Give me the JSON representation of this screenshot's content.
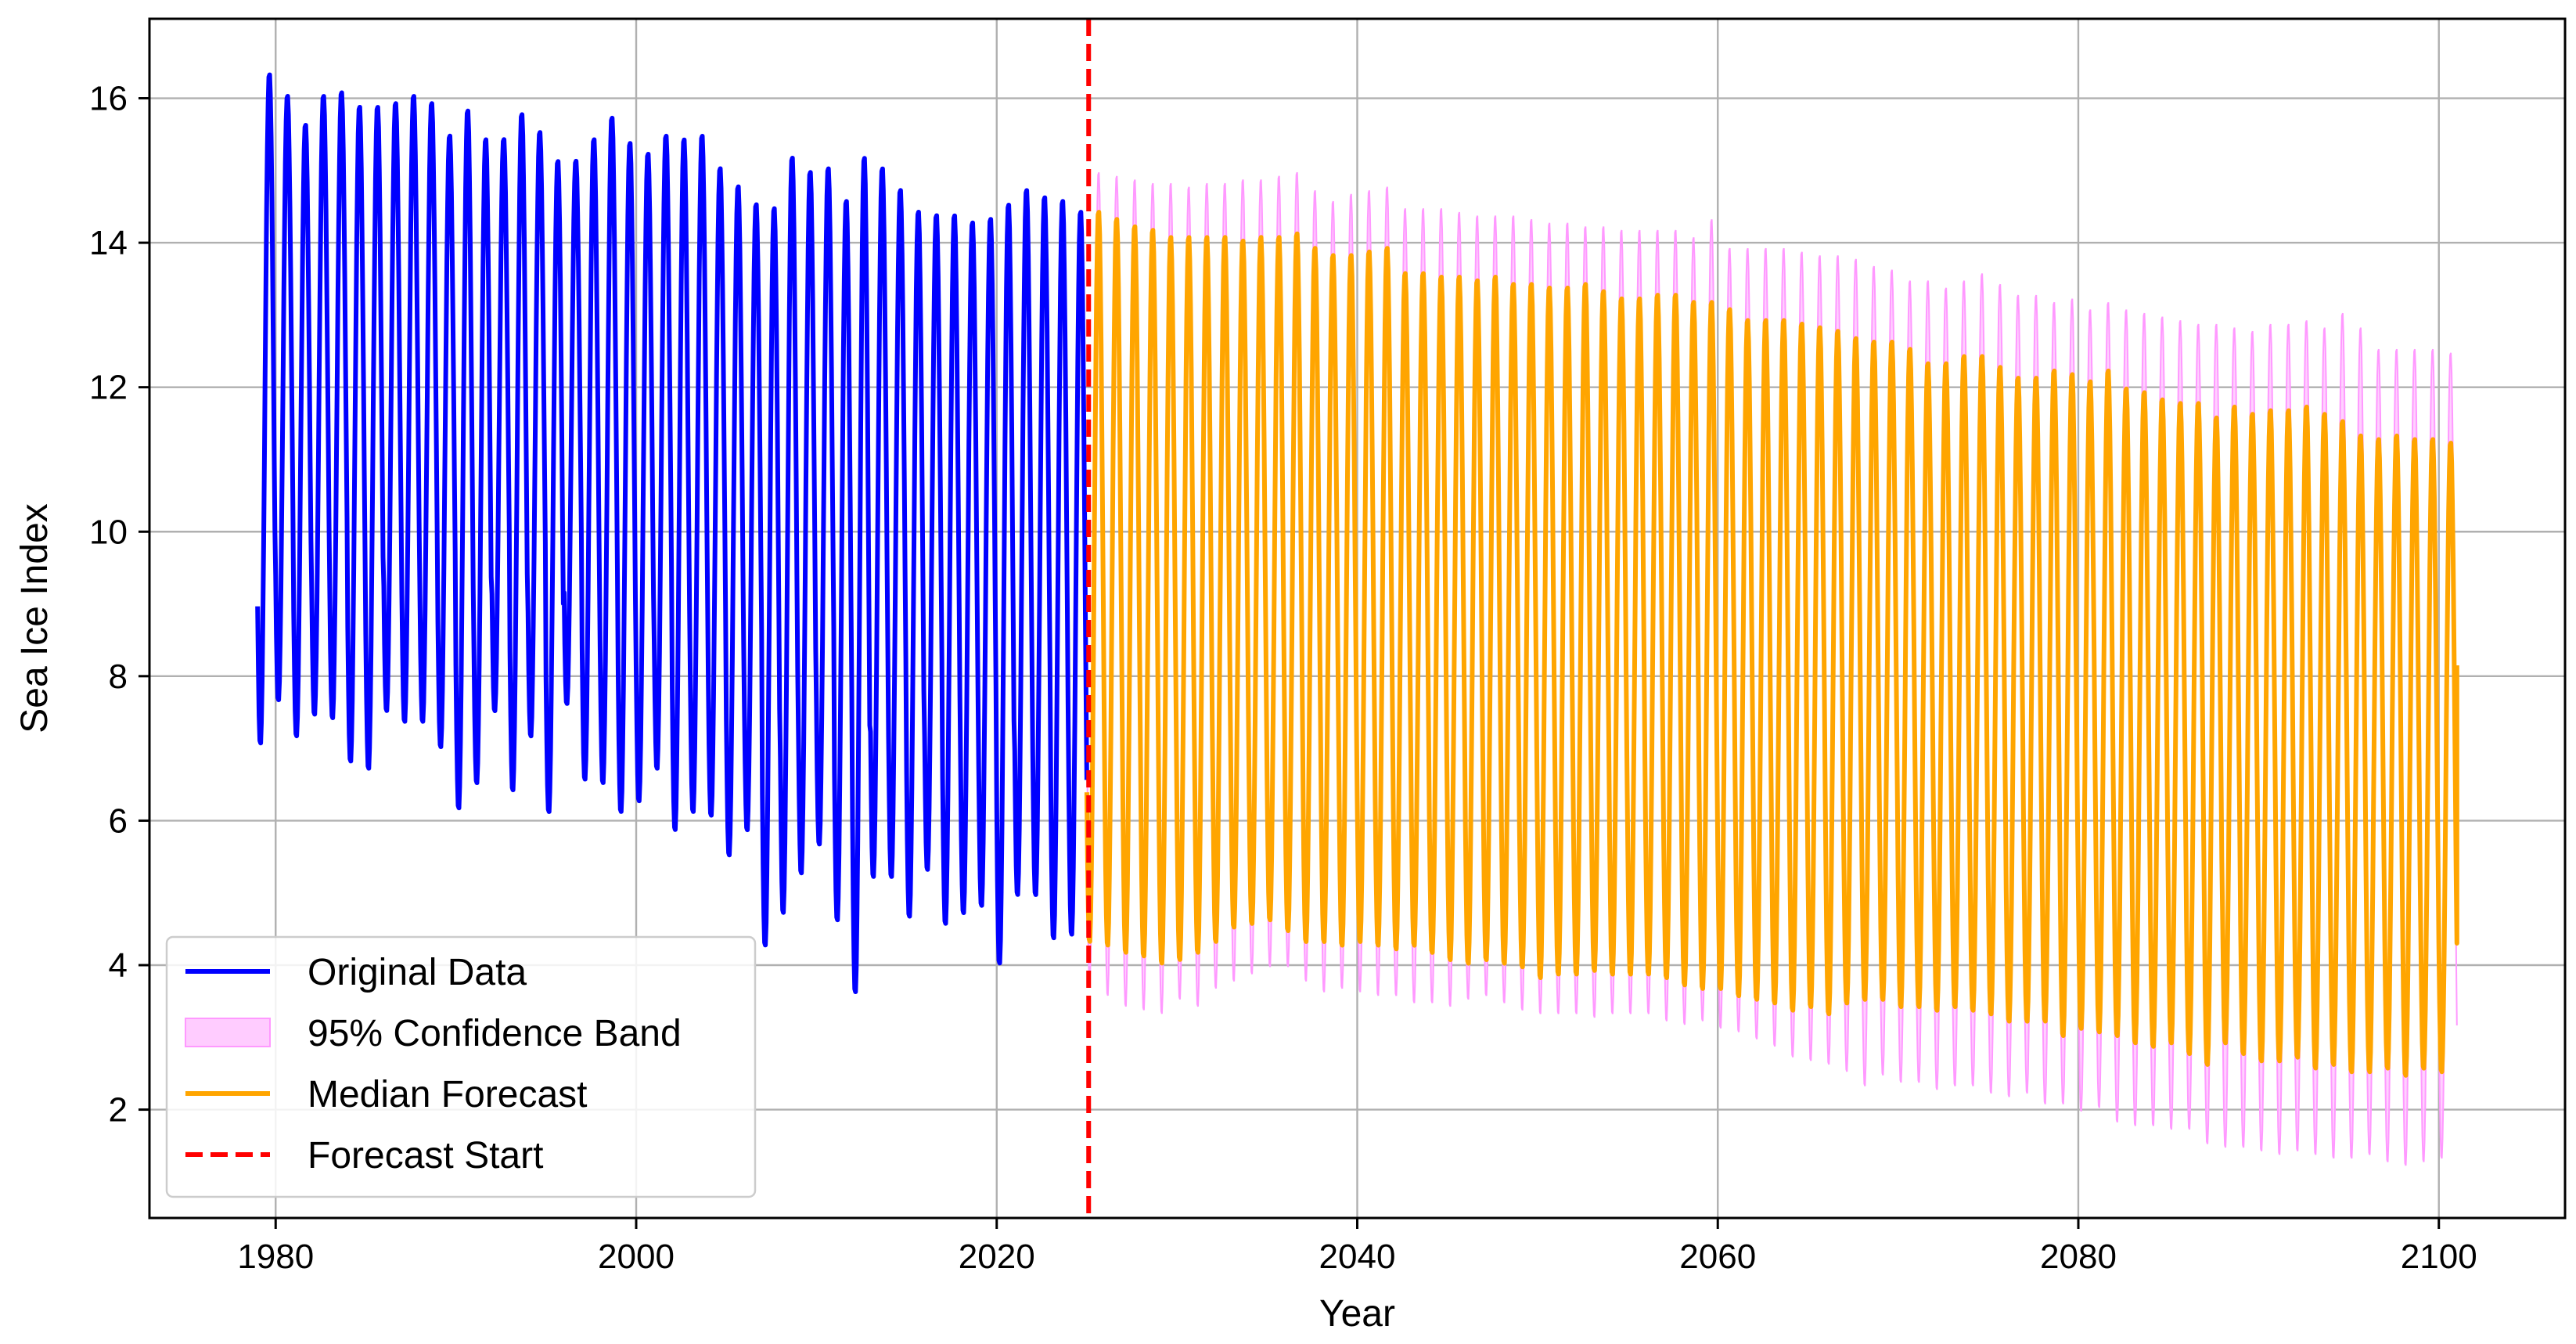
{
  "chart_data": {
    "type": "line",
    "title": "",
    "xlabel": "Year",
    "ylabel": "Sea Ice Index",
    "xlim": [
      1973.0,
      2107.0
    ],
    "ylim": [
      0.5,
      17.1
    ],
    "xticks": [
      1980,
      2000,
      2020,
      2040,
      2060,
      2080,
      2100
    ],
    "yticks": [
      2,
      4,
      6,
      8,
      10,
      12,
      14,
      16
    ],
    "grid": true,
    "legend_position": "lower-left",
    "forecast_start": 2025.1,
    "series": [
      {
        "name": "Original Data",
        "kind": "seasonal-line",
        "color": "#0000ff",
        "x_start": 1979.0,
        "x_end": 2025.0,
        "annual_maxima": [
          16.35,
          16.05,
          15.65,
          16.05,
          16.1,
          15.9,
          15.9,
          15.95,
          16.05,
          15.95,
          15.5,
          15.85,
          15.45,
          15.45,
          15.8,
          15.55,
          15.15,
          15.15,
          15.45,
          15.75,
          15.4,
          15.25,
          15.5,
          15.45,
          15.5,
          15.05,
          14.8,
          14.55,
          14.5,
          15.2,
          15.0,
          15.05,
          14.6,
          15.2,
          15.05,
          14.75,
          14.45,
          14.4,
          14.4,
          14.3,
          14.35,
          14.55,
          14.75,
          14.65,
          14.6,
          14.45,
          14.9
        ],
        "annual_minima": [
          7.05,
          7.65,
          7.15,
          7.45,
          7.4,
          6.8,
          6.7,
          7.5,
          7.35,
          7.35,
          7.0,
          6.15,
          6.5,
          7.5,
          6.4,
          7.15,
          6.1,
          7.6,
          6.55,
          6.5,
          6.1,
          6.25,
          6.7,
          5.85,
          6.1,
          6.05,
          5.5,
          5.85,
          4.25,
          4.7,
          5.25,
          5.65,
          4.6,
          3.6,
          5.2,
          5.2,
          4.65,
          5.3,
          4.55,
          4.7,
          4.8,
          4.0,
          4.95,
          4.95,
          4.35,
          4.4,
          4.4
        ]
      },
      {
        "name": "95% Confidence Band",
        "kind": "band",
        "color": "#ffccff",
        "edge_color": "#ff99ff",
        "x_start": 2025.0,
        "x_end": 2101.0,
        "upper_maxima": [
          15.0,
          14.95,
          14.9,
          14.85,
          14.85,
          14.8,
          14.85,
          14.85,
          14.9,
          14.9,
          14.95,
          15.0,
          14.75,
          14.6,
          14.7,
          14.75,
          14.8,
          14.5,
          14.5,
          14.5,
          14.45,
          14.4,
          14.4,
          14.4,
          14.35,
          14.3,
          14.3,
          14.25,
          14.25,
          14.2,
          14.2,
          14.2,
          14.2,
          14.1,
          14.35,
          13.95,
          13.95,
          13.95,
          13.95,
          13.9,
          13.85,
          13.85,
          13.8,
          13.7,
          13.65,
          13.5,
          13.5,
          13.4,
          13.5,
          13.6,
          13.45,
          13.3,
          13.3,
          13.2,
          13.25,
          13.1,
          13.2,
          13.1,
          13.05,
          13.0,
          12.95,
          12.9,
          12.9,
          12.85,
          12.8,
          12.9,
          12.9,
          12.95,
          12.85,
          13.05,
          12.85,
          12.55,
          12.55,
          12.55,
          12.55,
          12.5
        ],
        "lower_minima": [
          3.75,
          3.55,
          3.4,
          3.35,
          3.3,
          3.5,
          3.4,
          3.65,
          3.75,
          3.85,
          3.95,
          3.95,
          3.75,
          3.6,
          3.65,
          3.6,
          3.55,
          3.55,
          3.45,
          3.45,
          3.4,
          3.5,
          3.55,
          3.45,
          3.35,
          3.3,
          3.3,
          3.3,
          3.25,
          3.3,
          3.3,
          3.3,
          3.2,
          3.15,
          3.2,
          3.1,
          3.05,
          2.95,
          2.85,
          2.7,
          2.65,
          2.6,
          2.5,
          2.3,
          2.45,
          2.35,
          2.35,
          2.25,
          2.3,
          2.3,
          2.2,
          2.15,
          2.2,
          2.05,
          2.05,
          1.95,
          2.0,
          1.8,
          1.75,
          1.75,
          1.7,
          1.7,
          1.5,
          1.45,
          1.45,
          1.4,
          1.35,
          1.4,
          1.35,
          1.3,
          1.3,
          1.35,
          1.25,
          1.2,
          1.25,
          1.3
        ]
      },
      {
        "name": "Median Forecast",
        "kind": "seasonal-line",
        "color": "#ffa500",
        "x_start": 2025.0,
        "x_end": 2101.0,
        "annual_maxima": [
          14.45,
          14.35,
          14.25,
          14.2,
          14.1,
          14.1,
          14.1,
          14.1,
          14.05,
          14.1,
          14.1,
          14.15,
          13.95,
          13.85,
          13.85,
          13.9,
          13.95,
          13.6,
          13.6,
          13.55,
          13.55,
          13.5,
          13.55,
          13.45,
          13.45,
          13.4,
          13.4,
          13.45,
          13.35,
          13.25,
          13.25,
          13.3,
          13.3,
          13.2,
          13.2,
          13.1,
          12.95,
          12.95,
          12.95,
          12.9,
          12.85,
          12.8,
          12.7,
          12.65,
          12.65,
          12.55,
          12.35,
          12.35,
          12.45,
          12.45,
          12.3,
          12.15,
          12.15,
          12.25,
          12.2,
          12.1,
          12.25,
          12.0,
          11.95,
          11.85,
          11.8,
          11.8,
          11.6,
          11.75,
          11.65,
          11.7,
          11.7,
          11.75,
          11.65,
          11.55,
          11.35,
          11.3,
          11.35,
          11.3,
          11.3,
          11.25
        ],
        "annual_minima": [
          4.3,
          4.25,
          4.15,
          4.1,
          4.0,
          4.05,
          4.15,
          4.3,
          4.5,
          4.55,
          4.6,
          4.45,
          4.3,
          4.3,
          4.25,
          4.3,
          4.25,
          4.2,
          4.25,
          4.15,
          4.05,
          4.0,
          4.05,
          4.0,
          3.95,
          3.8,
          3.85,
          3.85,
          3.9,
          3.85,
          3.85,
          3.85,
          3.8,
          3.7,
          3.65,
          3.65,
          3.55,
          3.5,
          3.45,
          3.35,
          3.4,
          3.3,
          3.45,
          3.5,
          3.5,
          3.4,
          3.4,
          3.35,
          3.4,
          3.35,
          3.3,
          3.2,
          3.2,
          3.2,
          3.0,
          3.1,
          3.05,
          3.0,
          2.9,
          2.85,
          2.9,
          2.75,
          2.6,
          2.9,
          2.75,
          2.65,
          2.65,
          2.7,
          2.55,
          2.6,
          2.5,
          2.5,
          2.55,
          2.45,
          2.55,
          2.5
        ]
      }
    ],
    "end_point": {
      "x": 2101.0,
      "y": 8.15
    },
    "legend": [
      {
        "label": "Original Data",
        "symbol": "line",
        "color": "#0000ff"
      },
      {
        "label": "95% Confidence Band",
        "symbol": "patch",
        "color": "#ffccff",
        "edge_color": "#ff99ff"
      },
      {
        "label": "Median Forecast",
        "symbol": "line",
        "color": "#ffa500"
      },
      {
        "label": "Forecast Start",
        "symbol": "dashed",
        "color": "#ff0000"
      }
    ]
  }
}
